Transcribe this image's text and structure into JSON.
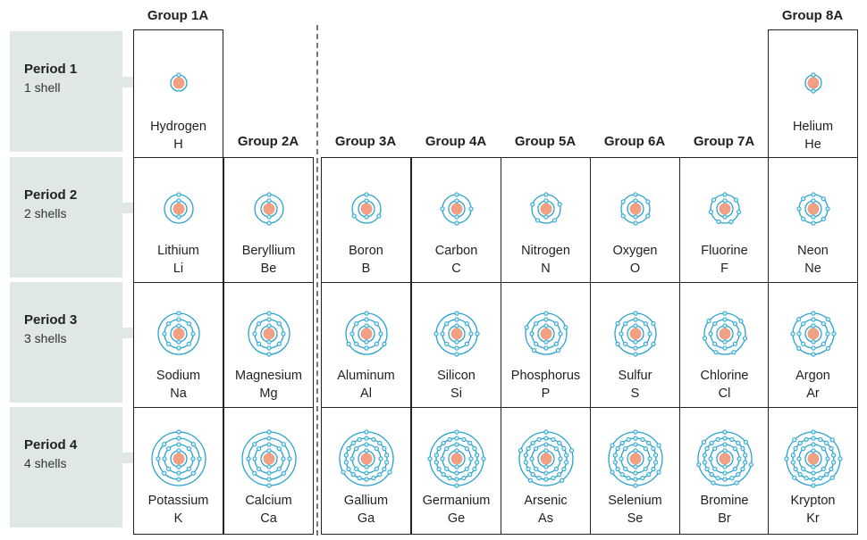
{
  "group_headers": [
    {
      "label": "Group 1A",
      "col": 0,
      "row": 0
    },
    {
      "label": "Group 2A",
      "col": 1,
      "row": 1
    },
    {
      "label": "Group 3A",
      "col": 2,
      "row": 1
    },
    {
      "label": "Group 4A",
      "col": 3,
      "row": 1
    },
    {
      "label": "Group 5A",
      "col": 4,
      "row": 1
    },
    {
      "label": "Group 6A",
      "col": 5,
      "row": 1
    },
    {
      "label": "Group 7A",
      "col": 6,
      "row": 1
    },
    {
      "label": "Group 8A",
      "col": 7,
      "row": 0
    }
  ],
  "periods": [
    {
      "name": "Period 1",
      "shells_label": "1 shell"
    },
    {
      "name": "Period 2",
      "shells_label": "2 shells"
    },
    {
      "name": "Period 3",
      "shells_label": "3 shells"
    },
    {
      "name": "Period 4",
      "shells_label": "4 shells"
    }
  ],
  "colors": {
    "nucleus": "#f2a084",
    "shell": "#29a3cf",
    "electron_fill": "#d8f0f8",
    "period_bg": "#dfe8e2",
    "arrow": "#dfe8e2",
    "divider": "#777777"
  },
  "elements": [
    {
      "name": "Hydrogen",
      "symbol": "H",
      "period": 1,
      "col": 0,
      "shells": [
        1
      ]
    },
    {
      "name": "Helium",
      "symbol": "He",
      "period": 1,
      "col": 7,
      "shells": [
        2
      ]
    },
    {
      "name": "Lithium",
      "symbol": "Li",
      "period": 2,
      "col": 0,
      "shells": [
        2,
        1
      ]
    },
    {
      "name": "Beryllium",
      "symbol": "Be",
      "period": 2,
      "col": 1,
      "shells": [
        2,
        2
      ]
    },
    {
      "name": "Boron",
      "symbol": "B",
      "period": 2,
      "col": 2,
      "shells": [
        2,
        3
      ]
    },
    {
      "name": "Carbon",
      "symbol": "C",
      "period": 2,
      "col": 3,
      "shells": [
        2,
        4
      ]
    },
    {
      "name": "Nitrogen",
      "symbol": "N",
      "period": 2,
      "col": 4,
      "shells": [
        2,
        5
      ]
    },
    {
      "name": "Oxygen",
      "symbol": "O",
      "period": 2,
      "col": 5,
      "shells": [
        2,
        6
      ]
    },
    {
      "name": "Fluorine",
      "symbol": "F",
      "period": 2,
      "col": 6,
      "shells": [
        2,
        7
      ]
    },
    {
      "name": "Neon",
      "symbol": "Ne",
      "period": 2,
      "col": 7,
      "shells": [
        2,
        8
      ]
    },
    {
      "name": "Sodium",
      "symbol": "Na",
      "period": 3,
      "col": 0,
      "shells": [
        2,
        8,
        1
      ]
    },
    {
      "name": "Magnesium",
      "symbol": "Mg",
      "period": 3,
      "col": 1,
      "shells": [
        2,
        8,
        2
      ]
    },
    {
      "name": "Aluminum",
      "symbol": "Al",
      "period": 3,
      "col": 2,
      "shells": [
        2,
        8,
        3
      ]
    },
    {
      "name": "Silicon",
      "symbol": "Si",
      "period": 3,
      "col": 3,
      "shells": [
        2,
        8,
        4
      ]
    },
    {
      "name": "Phosphorus",
      "symbol": "P",
      "period": 3,
      "col": 4,
      "shells": [
        2,
        8,
        5
      ]
    },
    {
      "name": "Sulfur",
      "symbol": "S",
      "period": 3,
      "col": 5,
      "shells": [
        2,
        8,
        6
      ]
    },
    {
      "name": "Chlorine",
      "symbol": "Cl",
      "period": 3,
      "col": 6,
      "shells": [
        2,
        8,
        7
      ]
    },
    {
      "name": "Argon",
      "symbol": "Ar",
      "period": 3,
      "col": 7,
      "shells": [
        2,
        8,
        8
      ]
    },
    {
      "name": "Potassium",
      "symbol": "K",
      "period": 4,
      "col": 0,
      "shells": [
        2,
        8,
        8,
        1
      ]
    },
    {
      "name": "Calcium",
      "symbol": "Ca",
      "period": 4,
      "col": 1,
      "shells": [
        2,
        8,
        8,
        2
      ]
    },
    {
      "name": "Gallium",
      "symbol": "Ga",
      "period": 4,
      "col": 2,
      "shells": [
        2,
        8,
        18,
        3
      ]
    },
    {
      "name": "Germanium",
      "symbol": "Ge",
      "period": 4,
      "col": 3,
      "shells": [
        2,
        8,
        18,
        4
      ]
    },
    {
      "name": "Arsenic",
      "symbol": "As",
      "period": 4,
      "col": 4,
      "shells": [
        2,
        8,
        18,
        5
      ]
    },
    {
      "name": "Selenium",
      "symbol": "Se",
      "period": 4,
      "col": 5,
      "shells": [
        2,
        8,
        18,
        6
      ]
    },
    {
      "name": "Bromine",
      "symbol": "Br",
      "period": 4,
      "col": 6,
      "shells": [
        2,
        8,
        18,
        7
      ]
    },
    {
      "name": "Krypton",
      "symbol": "Kr",
      "period": 4,
      "col": 7,
      "shells": [
        2,
        8,
        18,
        8
      ]
    }
  ]
}
